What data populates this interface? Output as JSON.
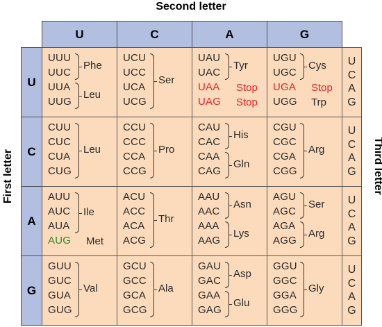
{
  "titles": {
    "second": "Second letter",
    "first": "First letter",
    "third": "Third letter"
  },
  "letters": [
    "U",
    "C",
    "A",
    "G"
  ],
  "third_letters": [
    "U",
    "C",
    "A",
    "G"
  ],
  "colors": {
    "header_bg": "#b2bfe0",
    "cell_bg": "#fbdbbb",
    "stop": "#e0262a",
    "start": "#2e8b2e"
  },
  "cells": [
    [
      {
        "codons": [
          "UUU",
          "UUC",
          "UUA",
          "UUG"
        ],
        "groups": [
          {
            "label": "Phe",
            "rows": [
              0,
              1
            ]
          },
          {
            "label": "Leu",
            "rows": [
              2,
              3
            ]
          }
        ]
      },
      {
        "codons": [
          "UCU",
          "UCC",
          "UCA",
          "UCG"
        ],
        "groups": [
          {
            "label": "Ser",
            "rows": [
              0,
              3
            ]
          }
        ]
      },
      {
        "codons": [
          "UAU",
          "UAC",
          "UAA",
          "UAG"
        ],
        "groups": [
          {
            "label": "Tyr",
            "rows": [
              0,
              1
            ]
          },
          {
            "label": "Stop",
            "rows": [
              2,
              2
            ],
            "style": "stop"
          },
          {
            "label": "Stop",
            "rows": [
              3,
              3
            ],
            "style": "stop"
          }
        ],
        "red_rows": [
          2,
          3
        ]
      },
      {
        "codons": [
          "UGU",
          "UGC",
          "UGA",
          "UGG"
        ],
        "groups": [
          {
            "label": "Cys",
            "rows": [
              0,
              1
            ]
          },
          {
            "label": "Stop",
            "rows": [
              2,
              2
            ],
            "style": "stop"
          },
          {
            "label": "Trp",
            "rows": [
              3,
              3
            ]
          }
        ],
        "red_rows": [
          2
        ]
      }
    ],
    [
      {
        "codons": [
          "CUU",
          "CUC",
          "CUA",
          "CUG"
        ],
        "groups": [
          {
            "label": "Leu",
            "rows": [
              0,
              3
            ]
          }
        ]
      },
      {
        "codons": [
          "CCU",
          "CCC",
          "CCA",
          "CCG"
        ],
        "groups": [
          {
            "label": "Pro",
            "rows": [
              0,
              3
            ]
          }
        ]
      },
      {
        "codons": [
          "CAU",
          "CAC",
          "CAA",
          "CAG"
        ],
        "groups": [
          {
            "label": "His",
            "rows": [
              0,
              1
            ]
          },
          {
            "label": "Gln",
            "rows": [
              2,
              3
            ]
          }
        ]
      },
      {
        "codons": [
          "CGU",
          "CGC",
          "CGA",
          "CGG"
        ],
        "groups": [
          {
            "label": "Arg",
            "rows": [
              0,
              3
            ]
          }
        ]
      }
    ],
    [
      {
        "codons": [
          "AUU",
          "AUC",
          "AUA",
          "AUG"
        ],
        "groups": [
          {
            "label": "Ile",
            "rows": [
              0,
              2
            ]
          },
          {
            "label": "Met",
            "rows": [
              3,
              3
            ]
          }
        ],
        "green_rows": [
          3
        ]
      },
      {
        "codons": [
          "ACU",
          "ACC",
          "ACA",
          "ACG"
        ],
        "groups": [
          {
            "label": "Thr",
            "rows": [
              0,
              3
            ]
          }
        ]
      },
      {
        "codons": [
          "AAU",
          "AAC",
          "AAA",
          "AAG"
        ],
        "groups": [
          {
            "label": "Asn",
            "rows": [
              0,
              1
            ]
          },
          {
            "label": "Lys",
            "rows": [
              2,
              3
            ]
          }
        ]
      },
      {
        "codons": [
          "AGU",
          "AGC",
          "AGA",
          "AGG"
        ],
        "groups": [
          {
            "label": "Ser",
            "rows": [
              0,
              1
            ]
          },
          {
            "label": "Arg",
            "rows": [
              2,
              3
            ]
          }
        ]
      }
    ],
    [
      {
        "codons": [
          "GUU",
          "GUC",
          "GUA",
          "GUG"
        ],
        "groups": [
          {
            "label": "Val",
            "rows": [
              0,
              3
            ]
          }
        ]
      },
      {
        "codons": [
          "GCU",
          "GCC",
          "GCA",
          "GCG"
        ],
        "groups": [
          {
            "label": "Ala",
            "rows": [
              0,
              3
            ]
          }
        ]
      },
      {
        "codons": [
          "GAU",
          "GAC",
          "GAA",
          "GAG"
        ],
        "groups": [
          {
            "label": "Asp",
            "rows": [
              0,
              1
            ]
          },
          {
            "label": "Glu",
            "rows": [
              2,
              3
            ]
          }
        ]
      },
      {
        "codons": [
          "GGU",
          "GGC",
          "GGA",
          "GGG"
        ],
        "groups": [
          {
            "label": "Gly",
            "rows": [
              0,
              3
            ]
          }
        ]
      }
    ]
  ]
}
